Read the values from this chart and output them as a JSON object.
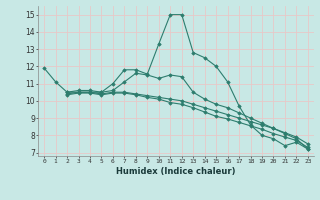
{
  "title": "",
  "xlabel": "Humidex (Indice chaleur)",
  "ylabel": "",
  "bg_color": "#c8e8e5",
  "plot_bg_color": "#c8e8e5",
  "line_color": "#2d7d6e",
  "grid_color": "#e8c8c8",
  "xlim": [
    -0.5,
    23.5
  ],
  "ylim": [
    6.8,
    15.5
  ],
  "xticks": [
    0,
    1,
    2,
    3,
    4,
    5,
    6,
    7,
    8,
    9,
    10,
    11,
    12,
    13,
    14,
    15,
    16,
    17,
    18,
    19,
    20,
    21,
    22,
    23
  ],
  "yticks": [
    7,
    8,
    9,
    10,
    11,
    12,
    13,
    14,
    15
  ],
  "series": [
    {
      "x": [
        0,
        1,
        2,
        3,
        4,
        5,
        6,
        7,
        8,
        9,
        10,
        11,
        12,
        13,
        14,
        15,
        16,
        17,
        18,
        19,
        20,
        21,
        22,
        23
      ],
      "y": [
        11.9,
        11.1,
        10.5,
        10.5,
        10.5,
        10.5,
        11.0,
        11.8,
        11.8,
        11.55,
        13.3,
        15.0,
        15.0,
        12.8,
        12.5,
        12.0,
        11.1,
        9.7,
        8.6,
        8.0,
        7.8,
        7.4,
        7.6,
        7.2
      ]
    },
    {
      "x": [
        2,
        3,
        4,
        5,
        6,
        7,
        8,
        9,
        10,
        11,
        12,
        13,
        14,
        15,
        16,
        17,
        18,
        19,
        20,
        21,
        22,
        23
      ],
      "y": [
        10.5,
        10.6,
        10.6,
        10.5,
        10.6,
        11.1,
        11.6,
        11.5,
        11.3,
        11.5,
        11.4,
        10.5,
        10.1,
        9.8,
        9.6,
        9.3,
        9.0,
        8.7,
        8.4,
        8.1,
        7.8,
        7.2
      ]
    },
    {
      "x": [
        2,
        3,
        4,
        5,
        6,
        7,
        8,
        9,
        10,
        11,
        12,
        13,
        14,
        15,
        16,
        17,
        18,
        19,
        20,
        21,
        22,
        23
      ],
      "y": [
        10.4,
        10.5,
        10.5,
        10.4,
        10.5,
        10.5,
        10.4,
        10.3,
        10.2,
        10.1,
        10.0,
        9.8,
        9.6,
        9.4,
        9.2,
        9.0,
        8.8,
        8.6,
        8.4,
        8.15,
        7.9,
        7.5
      ]
    },
    {
      "x": [
        2,
        3,
        4,
        5,
        6,
        7,
        8,
        9,
        10,
        11,
        12,
        13,
        14,
        15,
        16,
        17,
        18,
        19,
        20,
        21,
        22,
        23
      ],
      "y": [
        10.35,
        10.45,
        10.45,
        10.35,
        10.45,
        10.45,
        10.35,
        10.2,
        10.1,
        9.9,
        9.8,
        9.6,
        9.35,
        9.1,
        8.95,
        8.75,
        8.55,
        8.35,
        8.1,
        7.9,
        7.7,
        7.3
      ]
    }
  ]
}
